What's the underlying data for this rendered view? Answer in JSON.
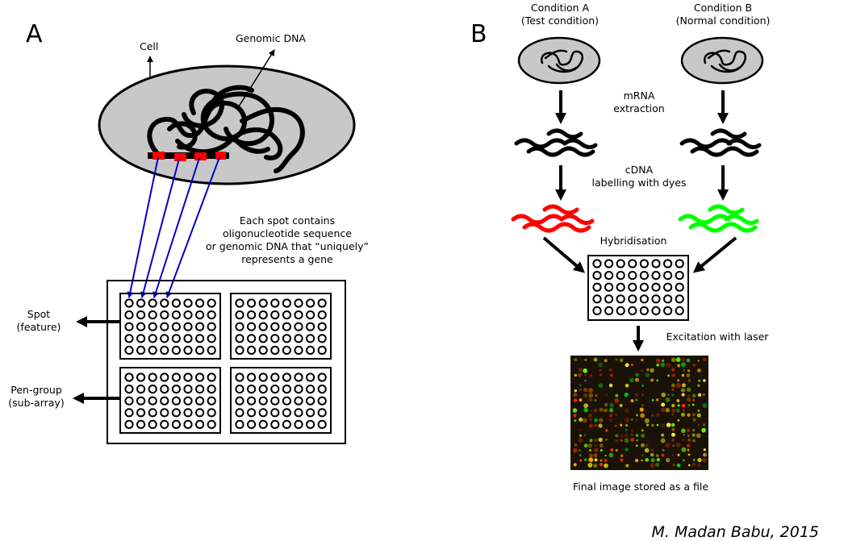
{
  "panel_a": {
    "letter": "A",
    "cell_label": "Cell",
    "genomic_label": "Genomic DNA",
    "spot_desc": [
      "Each spot contains",
      "oligonucleotide sequence",
      "or genomic DNA that “uniquely”",
      "represents a gene"
    ],
    "spot_label": [
      "Spot",
      "(feature)"
    ],
    "pen_label": [
      "Pen-group",
      "(sub-array)"
    ]
  },
  "panel_b": {
    "letter": "B",
    "condition_a": [
      "Condition A",
      "(Test condition)"
    ],
    "condition_b": [
      "Condition B",
      "(Normal condition)"
    ],
    "step_mrna": [
      "mRNA",
      "extraction"
    ],
    "step_cdna": [
      "cDNA",
      "labelling with dyes"
    ],
    "step_hyb": "Hybridisation",
    "step_laser": "Excitation with laser",
    "final": "Final image stored as a file"
  },
  "credit": "M. Madan Babu, 2015",
  "colors": {
    "cell_fill": "#c8c8c8",
    "marker": "#ff0000",
    "link": "#0000cc",
    "dye_test": "#ff0000",
    "dye_normal": "#00ff00",
    "scan_bg": "#1a1208"
  }
}
